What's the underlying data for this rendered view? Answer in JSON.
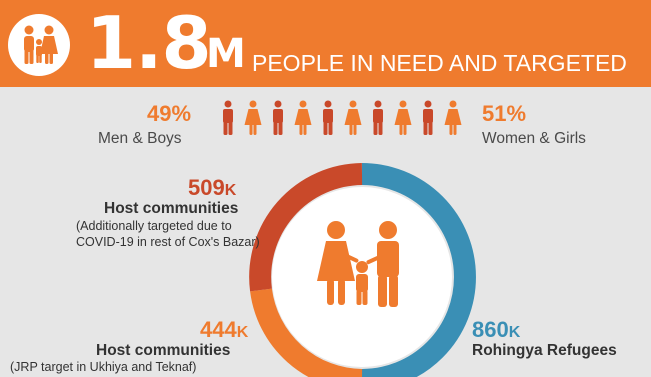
{
  "header": {
    "big_number": "1.8",
    "big_unit": "M",
    "caption": "PEOPLE IN NEED AND TARGETED"
  },
  "gender": {
    "men": {
      "percent": "49%",
      "label": "Men & Boys",
      "value": 49
    },
    "women": {
      "percent": "51%",
      "label": "Women & Girls",
      "value": 51
    }
  },
  "breakdown": {
    "host_covid": {
      "value": "509",
      "unit": "K",
      "label": "Host communities",
      "note_line1": "(Additionally targeted due to",
      "note_line2": "COVID-19 in rest of Cox's Bazar)",
      "amount": 509
    },
    "host_jrp": {
      "value": "444",
      "unit": "K",
      "label": "Host communities",
      "note_line1": "(JRP target in Ukhiya and Teknaf)",
      "amount": 444
    },
    "refugees": {
      "value": "860",
      "unit": "K",
      "label": "Rohingya Refugees",
      "amount": 860
    }
  },
  "colors": {
    "orange": "#ef7b2e",
    "dark_orange": "#c9492a",
    "blue": "#3a8fb5",
    "background": "#e6e6e6"
  },
  "icons": [
    "family-icon",
    "man-icon",
    "woman-icon"
  ]
}
